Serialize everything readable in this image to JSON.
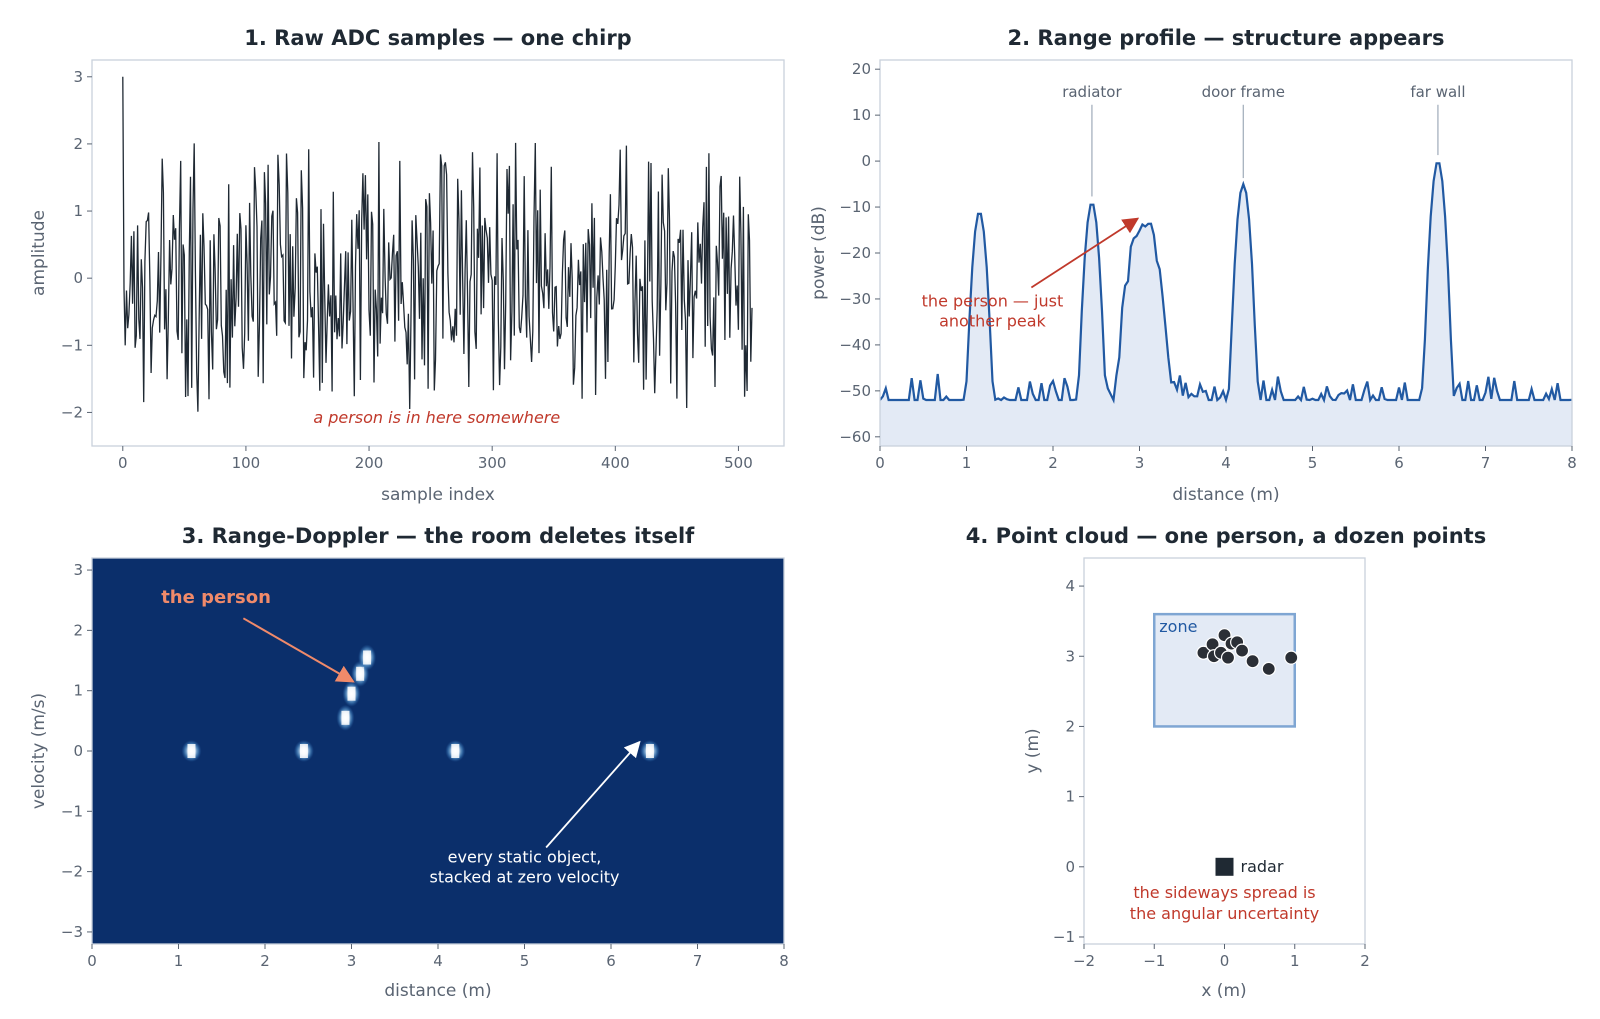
{
  "chart_data": [
    {
      "type": "line",
      "title": "1.  Raw ADC samples — one chirp",
      "xlabel": "sample index",
      "ylabel": "amplitude",
      "xlim": [
        -25,
        537
      ],
      "ylim": [
        -2.5,
        3.25
      ],
      "xticks": [
        0,
        100,
        200,
        300,
        400,
        500
      ],
      "yticks": [
        -2,
        -1,
        0,
        1,
        2,
        3
      ],
      "line_color": "#1f2933",
      "n_samples": 512,
      "annotation": "a person is in here somewhere",
      "annotation_pos": [
        255,
        -2.16
      ]
    },
    {
      "type": "area",
      "title": "2.  Range profile — structure appears",
      "xlabel": "distance (m)",
      "ylabel": "power (dB)",
      "xlim": [
        0,
        8
      ],
      "ylim": [
        -62,
        22
      ],
      "xticks": [
        0,
        1,
        2,
        3,
        4,
        5,
        6,
        7,
        8
      ],
      "yticks": [
        -60,
        -50,
        -40,
        -30,
        -20,
        -10,
        0,
        10,
        20
      ],
      "line_color": "#2159a2",
      "fill_color": "#e3eaf5",
      "noise_floor_db": -52,
      "peaks": [
        {
          "x": 1.15,
          "db": -11
        },
        {
          "x": 2.45,
          "db": -9
        },
        {
          "x": 3.05,
          "db": -12
        },
        {
          "x": 4.2,
          "db": -5
        },
        {
          "x": 6.45,
          "db": 0
        }
      ],
      "labels": [
        {
          "text": "radiator",
          "x": 2.45,
          "y": 14
        },
        {
          "text": "door frame",
          "x": 4.2,
          "y": 14
        },
        {
          "text": "far wall",
          "x": 6.45,
          "y": 14
        }
      ],
      "annotation": [
        "the person — just",
        "another peak"
      ],
      "annotation_pos": [
        1.3,
        -33
      ],
      "arrow_to": [
        2.98,
        -12.5
      ]
    },
    {
      "type": "heatmap",
      "title": "3.  Range-Doppler — the room deletes itself",
      "xlabel": "distance (m)",
      "ylabel": "velocity (m/s)",
      "xlim": [
        0,
        8
      ],
      "ylim": [
        -3.2,
        3.2
      ],
      "xticks": [
        0,
        1,
        2,
        3,
        4,
        5,
        6,
        7,
        8
      ],
      "yticks": [
        -3,
        -2,
        -1,
        0,
        1,
        2,
        3
      ],
      "background_color": "#0b2f6b",
      "blobs": [
        {
          "x": 1.15,
          "v": 0.0
        },
        {
          "x": 2.45,
          "v": 0.0
        },
        {
          "x": 4.2,
          "v": 0.0
        },
        {
          "x": 6.45,
          "v": 0.0
        },
        {
          "x": 2.93,
          "v": 0.55
        },
        {
          "x": 3.0,
          "v": 0.95
        },
        {
          "x": 3.1,
          "v": 1.28
        },
        {
          "x": 3.18,
          "v": 1.55
        }
      ],
      "annotation_person": "the person",
      "annotation_person_pos": [
        0.8,
        2.45
      ],
      "annotation_static": [
        "every static object,",
        "stacked at zero velocity"
      ],
      "annotation_static_pos": [
        5.0,
        -1.85
      ],
      "static_arrow_from": [
        5.25,
        -1.6
      ],
      "static_arrow_to": [
        6.33,
        0.15
      ],
      "person_arrow_from": [
        1.75,
        2.2
      ],
      "person_arrow_to": [
        3.02,
        1.15
      ]
    },
    {
      "type": "scatter",
      "title": "4.  Point cloud — one person, a dozen points",
      "xlabel": "x (m)",
      "ylabel": "y (m)",
      "xlim": [
        -2,
        2
      ],
      "ylim": [
        -1.1,
        4.4
      ],
      "xticks": [
        -2,
        -1,
        0,
        1,
        2
      ],
      "yticks": [
        -1,
        0,
        1,
        2,
        3,
        4
      ],
      "zone": {
        "label": "zone",
        "x0": -1,
        "x1": 1,
        "y0": 2,
        "y1": 3.6
      },
      "points": [
        {
          "x": -0.3,
          "y": 3.05
        },
        {
          "x": -0.17,
          "y": 3.17
        },
        {
          "x": -0.15,
          "y": 3.0
        },
        {
          "x": -0.05,
          "y": 3.05
        },
        {
          "x": 0.0,
          "y": 3.3
        },
        {
          "x": 0.05,
          "y": 2.98
        },
        {
          "x": 0.1,
          "y": 3.18
        },
        {
          "x": 0.18,
          "y": 3.2
        },
        {
          "x": 0.25,
          "y": 3.08
        },
        {
          "x": 0.4,
          "y": 2.93
        },
        {
          "x": 0.63,
          "y": 2.82
        },
        {
          "x": 0.95,
          "y": 2.98
        }
      ],
      "radar": {
        "label": "radar",
        "x": 0,
        "y": 0
      },
      "annotation": [
        "the sideways spread is",
        "the angular uncertainty"
      ],
      "annotation_pos": [
        0,
        -0.5
      ]
    }
  ]
}
